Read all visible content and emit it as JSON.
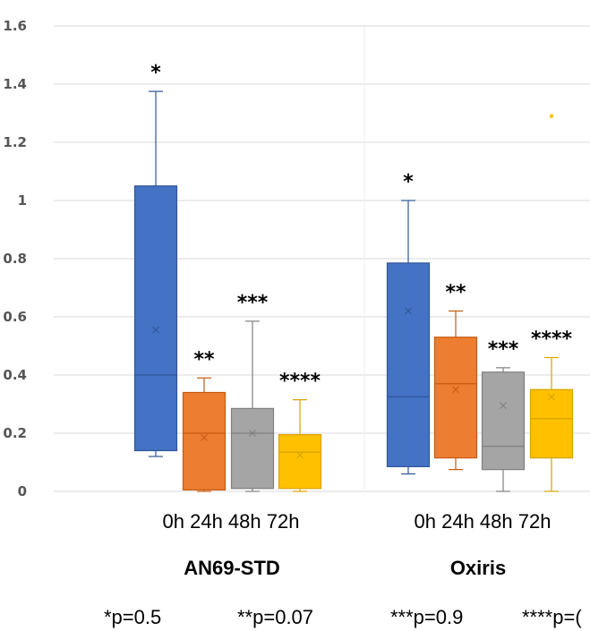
{
  "chart_data": {
    "type": "box",
    "ylim": [
      0,
      1.6
    ],
    "yticks": [
      "0",
      "0.2",
      "0.4",
      "0.6",
      "0.8",
      "1",
      "1.2",
      "1.4",
      "1.6"
    ],
    "grid": true,
    "categories": [
      "0h",
      "24h",
      "48h",
      "72h"
    ],
    "colors": {
      "0h": "#4472c4",
      "24h": "#ed7d31",
      "48h": "#a5a5a5",
      "72h": "#ffc000"
    },
    "groups": [
      {
        "name": "AN69-STD",
        "boxes": [
          {
            "category": "0h",
            "min": 0.12,
            "q1": 0.14,
            "median": 0.4,
            "q3": 1.05,
            "max": 1.375,
            "mean": 0.555,
            "label": "*"
          },
          {
            "category": "24h",
            "min": 0.0,
            "q1": 0.005,
            "median": 0.2,
            "q3": 0.34,
            "max": 0.39,
            "mean": 0.185,
            "label": "**"
          },
          {
            "category": "48h",
            "min": 0.0,
            "q1": 0.01,
            "median": 0.2,
            "q3": 0.285,
            "max": 0.585,
            "mean": 0.2,
            "label": "***"
          },
          {
            "category": "72h",
            "min": 0.0,
            "q1": 0.01,
            "median": 0.135,
            "q3": 0.195,
            "max": 0.315,
            "mean": 0.125,
            "label": "****"
          }
        ]
      },
      {
        "name": "Oxiris",
        "boxes": [
          {
            "category": "0h",
            "min": 0.06,
            "q1": 0.085,
            "median": 0.325,
            "q3": 0.785,
            "max": 1.0,
            "mean": 0.62,
            "label": "*"
          },
          {
            "category": "24h",
            "min": 0.075,
            "q1": 0.115,
            "median": 0.37,
            "q3": 0.53,
            "max": 0.62,
            "mean": 0.35,
            "label": "**"
          },
          {
            "category": "48h",
            "min": 0.0,
            "q1": 0.075,
            "median": 0.155,
            "q3": 0.41,
            "max": 0.425,
            "mean": 0.295,
            "label": "***"
          },
          {
            "category": "72h",
            "min": 0.0,
            "q1": 0.115,
            "median": 0.25,
            "q3": 0.35,
            "max": 0.46,
            "mean": 0.325,
            "outliers": [
              1.29
            ],
            "label": "****"
          }
        ]
      }
    ],
    "x_labels": "0h  24h 48h 72h",
    "footnotes": [
      "*p=0.5",
      "**p=0.07",
      "***p=0.9",
      "****p=("
    ]
  }
}
